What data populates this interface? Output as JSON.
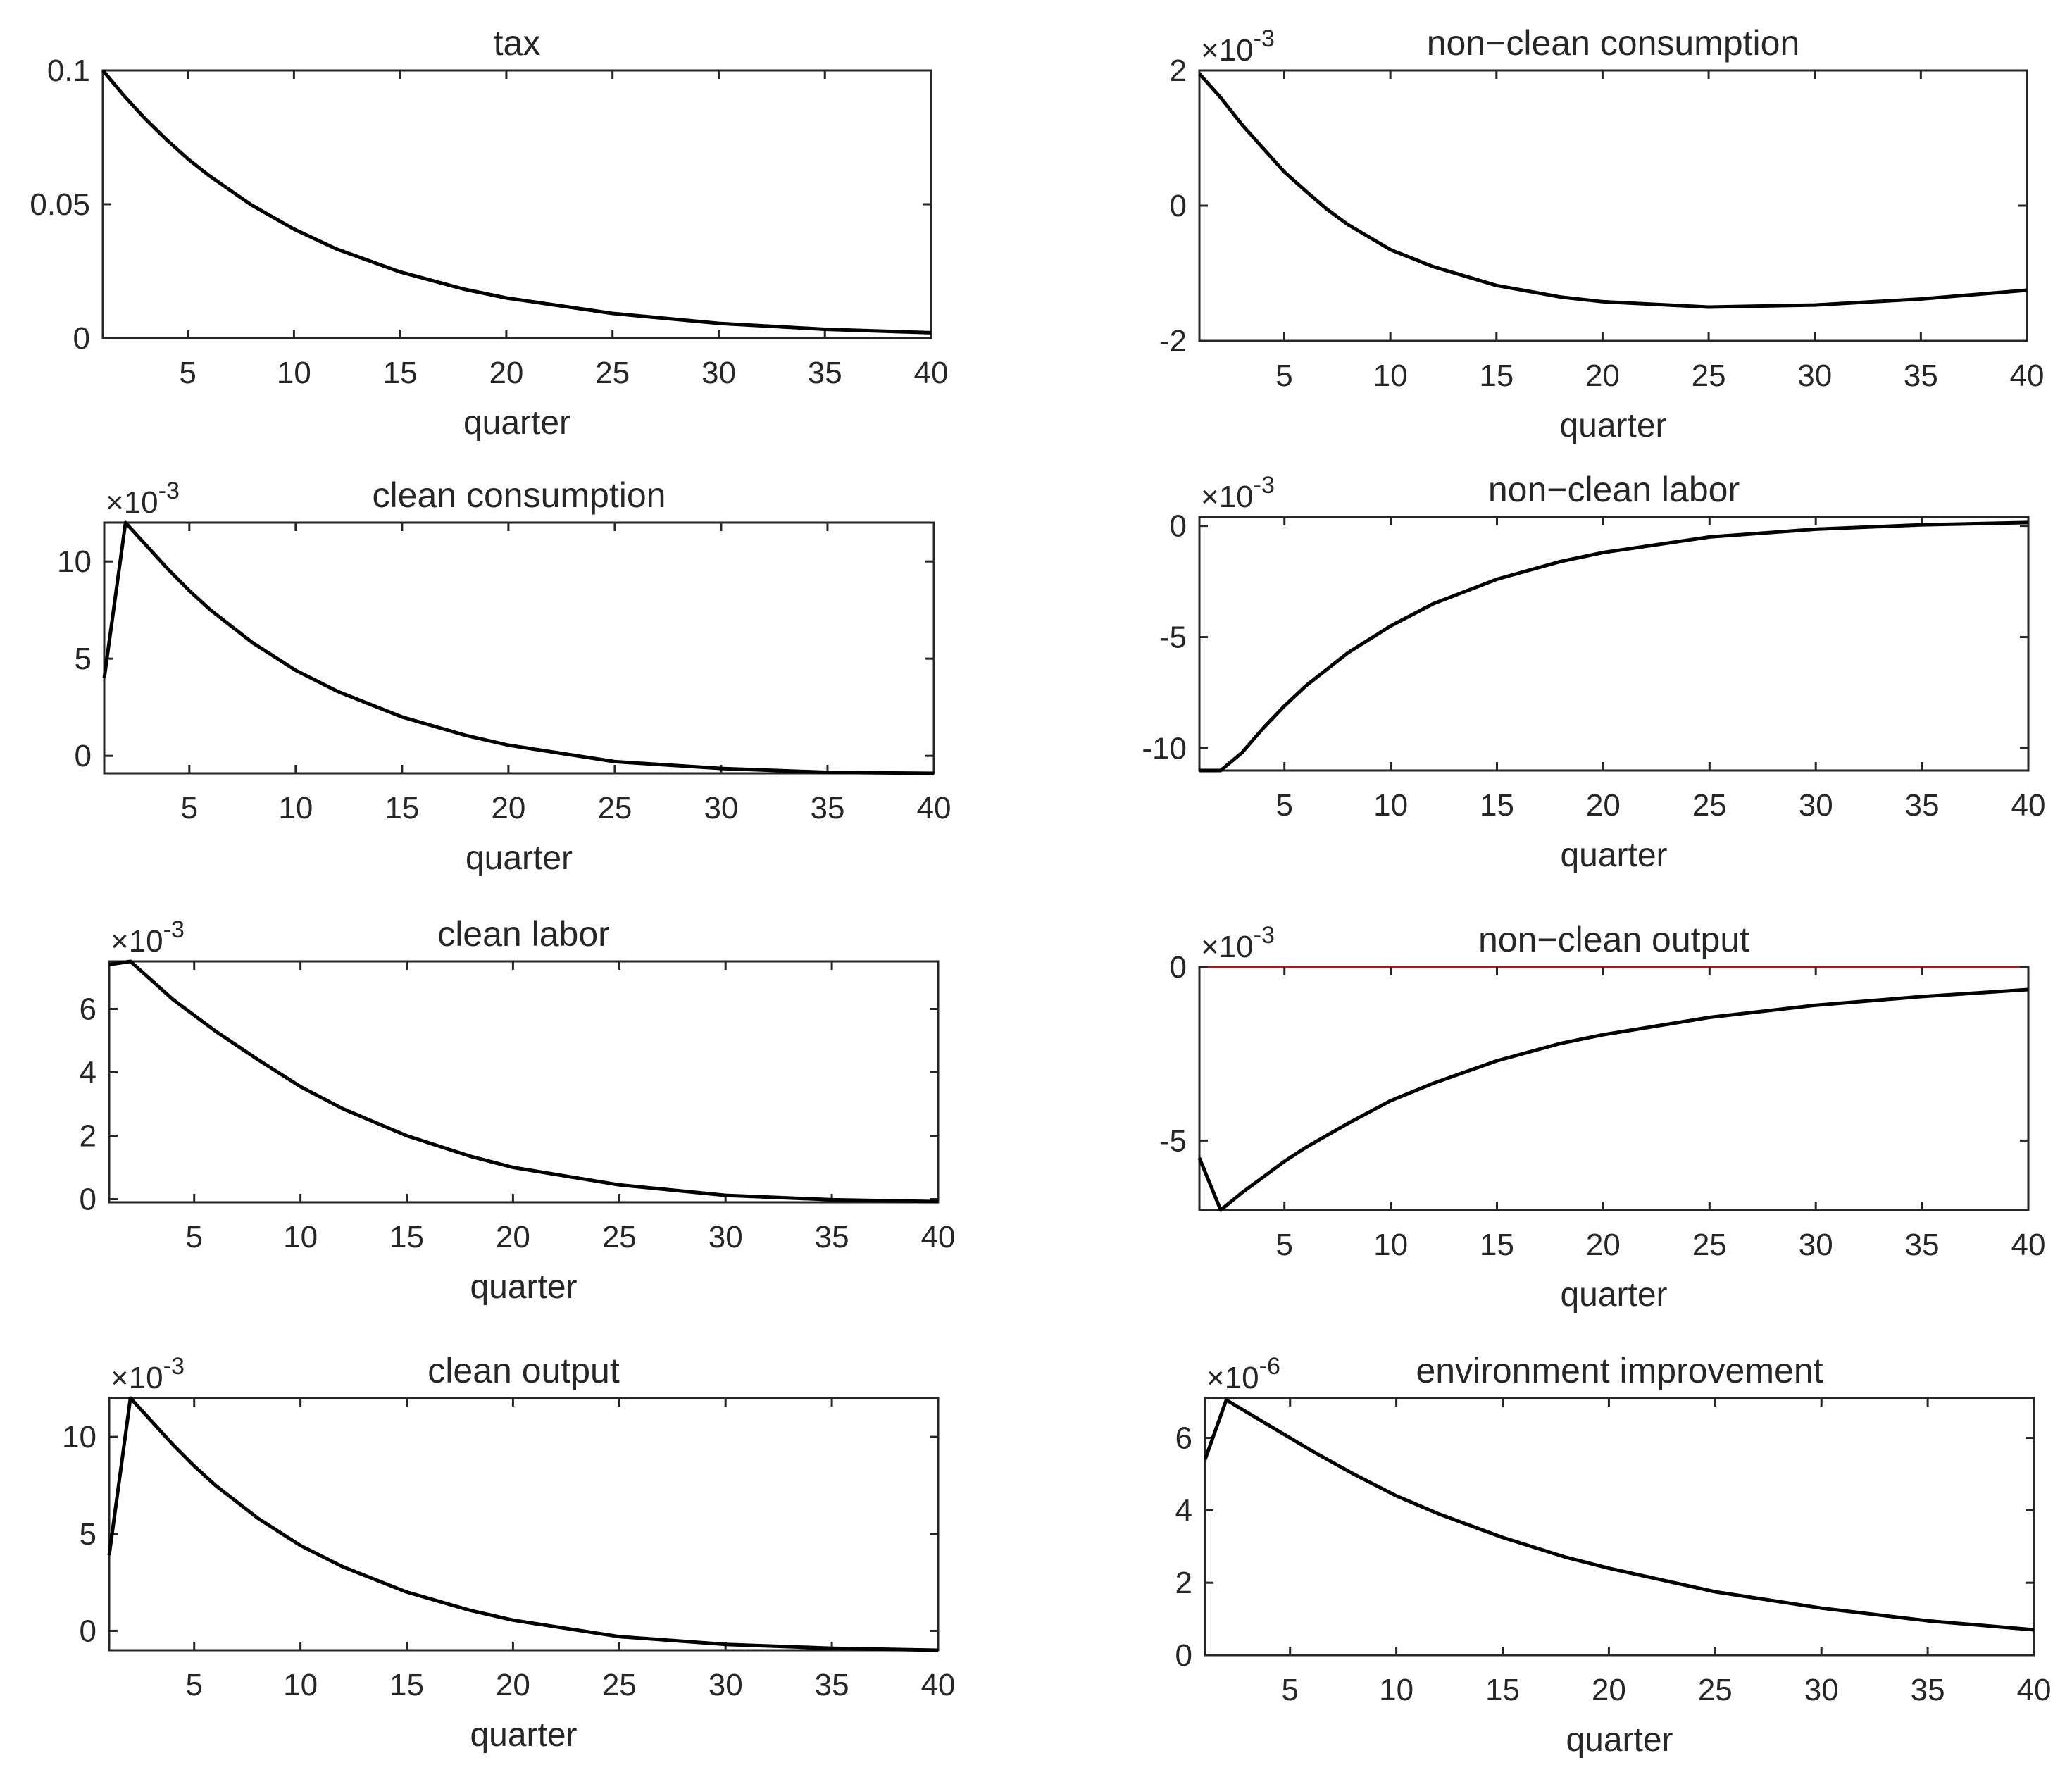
{
  "figure": {
    "xlabel": "quarter",
    "line_color": "#000000",
    "ref_color": "#a11d1d"
  },
  "chart_data": [
    {
      "type": "line",
      "title": "tax",
      "xlabel": "quarter",
      "ylabel": "",
      "xlim": [
        1,
        40
      ],
      "xticks": [
        5,
        10,
        15,
        20,
        25,
        30,
        35,
        40
      ],
      "ylim": [
        0,
        0.1
      ],
      "yticks": [
        0,
        0.05,
        0.1
      ],
      "ytick_labels": [
        "0",
        "0.05",
        "0.1"
      ],
      "exponent": "",
      "ref_line": null,
      "x": [
        1,
        2,
        3,
        4,
        5,
        6,
        8,
        10,
        12,
        15,
        18,
        20,
        25,
        30,
        35,
        40
      ],
      "y": [
        0.1,
        0.0905,
        0.0819,
        0.0741,
        0.067,
        0.0607,
        0.0497,
        0.0407,
        0.0333,
        0.0247,
        0.0183,
        0.015,
        0.0092,
        0.0055,
        0.0033,
        0.002
      ]
    },
    {
      "type": "line",
      "title": "non−clean consumption",
      "xlabel": "quarter",
      "ylabel": "",
      "xlim": [
        1,
        40
      ],
      "xticks": [
        5,
        10,
        15,
        20,
        25,
        30,
        35,
        40
      ],
      "ylim": [
        -2,
        2
      ],
      "yticks": [
        -2,
        0,
        2
      ],
      "ytick_labels": [
        "-2",
        "0",
        "2"
      ],
      "exponent": "-3",
      "ref_line": null,
      "x": [
        1,
        2,
        3,
        4,
        5,
        6,
        7,
        8,
        10,
        12,
        15,
        18,
        20,
        25,
        30,
        35,
        40
      ],
      "y": [
        1.95,
        1.6,
        1.2,
        0.85,
        0.5,
        0.22,
        -0.05,
        -0.28,
        -0.65,
        -0.9,
        -1.18,
        -1.35,
        -1.42,
        -1.5,
        -1.47,
        -1.38,
        -1.25
      ]
    },
    {
      "type": "line",
      "title": "clean consumption",
      "xlabel": "quarter",
      "ylabel": "",
      "xlim": [
        1,
        40
      ],
      "xticks": [
        5,
        10,
        15,
        20,
        25,
        30,
        35,
        40
      ],
      "ylim": [
        -0.9,
        12
      ],
      "yticks": [
        0,
        5,
        10
      ],
      "ytick_labels": [
        "0",
        "5",
        "10"
      ],
      "exponent": "-3",
      "ref_line": null,
      "x": [
        1,
        2,
        3,
        4,
        5,
        6,
        8,
        10,
        12,
        15,
        18,
        20,
        25,
        30,
        35,
        40
      ],
      "y": [
        4,
        12,
        10.8,
        9.6,
        8.5,
        7.5,
        5.8,
        4.4,
        3.3,
        2.0,
        1.05,
        0.55,
        -0.3,
        -0.65,
        -0.85,
        -0.9
      ]
    },
    {
      "type": "line",
      "title": "non−clean labor",
      "xlabel": "quarter",
      "ylabel": "",
      "xlim": [
        1,
        40
      ],
      "xticks": [
        5,
        10,
        15,
        20,
        25,
        30,
        35,
        40
      ],
      "ylim": [
        -11,
        0.4
      ],
      "yticks": [
        -10,
        -5,
        0
      ],
      "ytick_labels": [
        "-10",
        "-5",
        "0"
      ],
      "exponent": "-3",
      "ref_line": null,
      "x": [
        1,
        2,
        3,
        4,
        5,
        6,
        8,
        10,
        12,
        15,
        18,
        20,
        25,
        30,
        35,
        40
      ],
      "y": [
        -11,
        -11,
        -10.2,
        -9.1,
        -8.1,
        -7.2,
        -5.7,
        -4.5,
        -3.5,
        -2.4,
        -1.6,
        -1.2,
        -0.5,
        -0.15,
        0.05,
        0.15
      ]
    },
    {
      "type": "line",
      "title": "clean labor",
      "xlabel": "quarter",
      "ylabel": "",
      "xlim": [
        1,
        40
      ],
      "xticks": [
        5,
        10,
        15,
        20,
        25,
        30,
        35,
        40
      ],
      "ylim": [
        -0.1,
        7.5
      ],
      "yticks": [
        0,
        2,
        4,
        6
      ],
      "ytick_labels": [
        "0",
        "2",
        "4",
        "6"
      ],
      "exponent": "-3",
      "ref_line": null,
      "x": [
        1,
        2,
        3,
        4,
        5,
        6,
        8,
        10,
        12,
        15,
        18,
        20,
        25,
        30,
        35,
        40
      ],
      "y": [
        7.4,
        7.5,
        6.9,
        6.3,
        5.8,
        5.3,
        4.4,
        3.55,
        2.85,
        2.0,
        1.35,
        1.0,
        0.45,
        0.12,
        -0.02,
        -0.08
      ]
    },
    {
      "type": "line",
      "title": "non−clean output",
      "xlabel": "quarter",
      "ylabel": "",
      "xlim": [
        1,
        40
      ],
      "xticks": [
        5,
        10,
        15,
        20,
        25,
        30,
        35,
        40
      ],
      "ylim": [
        -7,
        0
      ],
      "yticks": [
        -5,
        0
      ],
      "ytick_labels": [
        "-5",
        "0"
      ],
      "exponent": "-3",
      "ref_line": 0,
      "x": [
        1,
        2,
        3,
        4,
        5,
        6,
        8,
        10,
        12,
        15,
        18,
        20,
        25,
        30,
        35,
        40
      ],
      "y": [
        -5.5,
        -7,
        -6.5,
        -6.05,
        -5.6,
        -5.2,
        -4.5,
        -3.85,
        -3.35,
        -2.7,
        -2.2,
        -1.95,
        -1.45,
        -1.1,
        -0.85,
        -0.65
      ]
    },
    {
      "type": "line",
      "title": "clean output",
      "xlabel": "quarter",
      "ylabel": "",
      "xlim": [
        1,
        40
      ],
      "xticks": [
        5,
        10,
        15,
        20,
        25,
        30,
        35,
        40
      ],
      "ylim": [
        -1,
        12
      ],
      "yticks": [
        0,
        5,
        10
      ],
      "ytick_labels": [
        "0",
        "5",
        "10"
      ],
      "exponent": "-3",
      "ref_line": null,
      "x": [
        1,
        2,
        3,
        4,
        5,
        6,
        8,
        10,
        12,
        15,
        18,
        20,
        25,
        30,
        35,
        40
      ],
      "y": [
        3.9,
        12,
        10.8,
        9.6,
        8.5,
        7.5,
        5.8,
        4.4,
        3.3,
        2.0,
        1.05,
        0.55,
        -0.3,
        -0.7,
        -0.9,
        -1.0
      ]
    },
    {
      "type": "line",
      "title": "environment improvement",
      "xlabel": "quarter",
      "ylabel": "",
      "xlim": [
        1,
        40
      ],
      "xticks": [
        5,
        10,
        15,
        20,
        25,
        30,
        35,
        40
      ],
      "ylim": [
        0,
        7.1
      ],
      "yticks": [
        0,
        2,
        4,
        6
      ],
      "ytick_labels": [
        "0",
        "2",
        "4",
        "6"
      ],
      "exponent": "-6",
      "ref_line": null,
      "x": [
        1,
        2,
        3,
        4,
        5,
        6,
        8,
        10,
        12,
        15,
        18,
        20,
        25,
        30,
        35,
        40
      ],
      "y": [
        5.4,
        7.05,
        6.7,
        6.35,
        6.0,
        5.65,
        5.0,
        4.4,
        3.9,
        3.25,
        2.7,
        2.4,
        1.75,
        1.3,
        0.95,
        0.7
      ]
    }
  ]
}
